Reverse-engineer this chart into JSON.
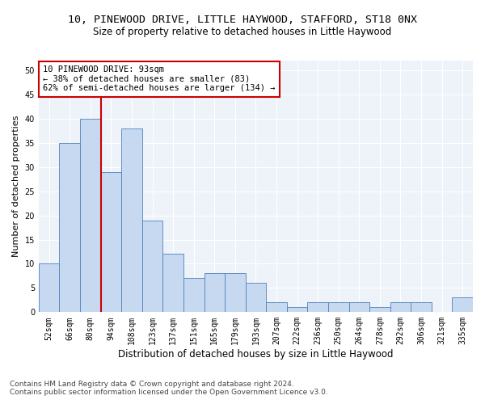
{
  "title1": "10, PINEWOOD DRIVE, LITTLE HAYWOOD, STAFFORD, ST18 0NX",
  "title2": "Size of property relative to detached houses in Little Haywood",
  "xlabel": "Distribution of detached houses by size in Little Haywood",
  "ylabel": "Number of detached properties",
  "bin_labels": [
    "52sqm",
    "66sqm",
    "80sqm",
    "94sqm",
    "108sqm",
    "123sqm",
    "137sqm",
    "151sqm",
    "165sqm",
    "179sqm",
    "193sqm",
    "207sqm",
    "222sqm",
    "236sqm",
    "250sqm",
    "264sqm",
    "278sqm",
    "292sqm",
    "306sqm",
    "321sqm",
    "335sqm"
  ],
  "bar_values": [
    10,
    35,
    40,
    29,
    38,
    19,
    12,
    7,
    8,
    8,
    6,
    2,
    1,
    2,
    2,
    2,
    1,
    2,
    2,
    0,
    3
  ],
  "bar_color": "#c6d9f0",
  "bar_edge_color": "#4f81bd",
  "vline_color": "#cc0000",
  "annotation_line1": "10 PINEWOOD DRIVE: 93sqm",
  "annotation_line2": "← 38% of detached houses are smaller (83)",
  "annotation_line3": "62% of semi-detached houses are larger (134) →",
  "annotation_box_color": "white",
  "annotation_box_edge_color": "#cc0000",
  "ylim": [
    0,
    52
  ],
  "yticks": [
    0,
    5,
    10,
    15,
    20,
    25,
    30,
    35,
    40,
    45,
    50
  ],
  "footer1": "Contains HM Land Registry data © Crown copyright and database right 2024.",
  "footer2": "Contains public sector information licensed under the Open Government Licence v3.0.",
  "bg_color": "#eef3f9",
  "grid_color": "white",
  "title1_fontsize": 9.5,
  "title2_fontsize": 8.5,
  "xlabel_fontsize": 8.5,
  "ylabel_fontsize": 8,
  "tick_fontsize": 7,
  "annotation_fontsize": 7.5,
  "footer_fontsize": 6.5
}
